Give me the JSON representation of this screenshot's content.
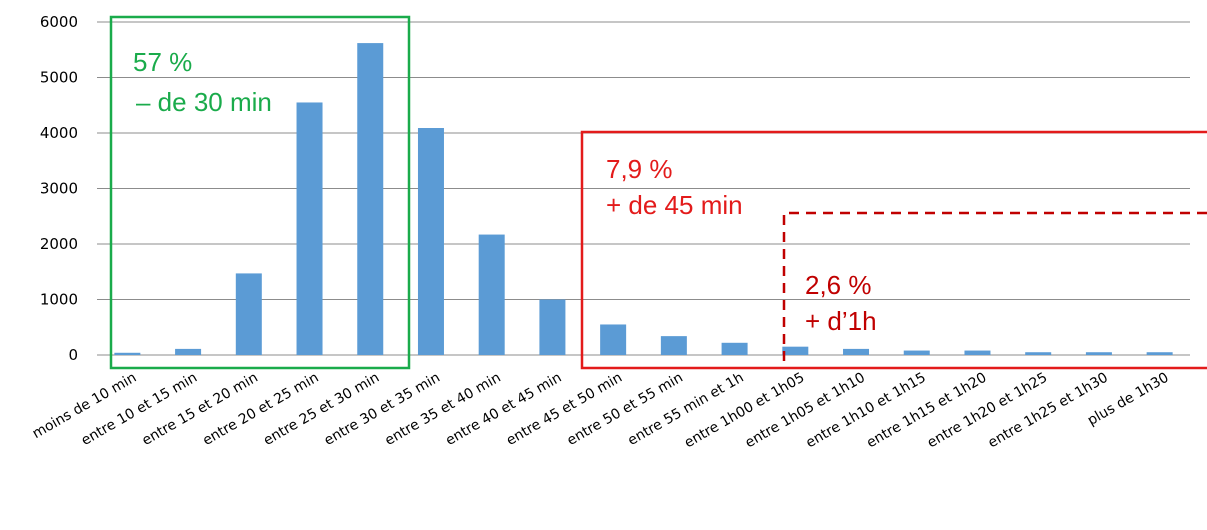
{
  "chart_data": {
    "type": "bar",
    "categories": [
      "moins de 10 min",
      "entre 10 et 15 min",
      "entre 15 et 20 min",
      "entre 20 et 25 min",
      "entre 25 et 30 min",
      "entre 30 et 35 min",
      "entre 35 et 40 min",
      "entre 40 et 45 min",
      "entre 45 et 50 min",
      "entre 50 et 55 min",
      "entre 55 min et 1h",
      "entre 1h00 et 1h05",
      "entre 1h05 et 1h10",
      "entre 1h10 et 1h15",
      "entre 1h15 et 1h20",
      "entre 1h20 et 1h25",
      "entre 1h25 et 1h30",
      "plus de 1h30"
    ],
    "values": [
      40,
      110,
      1470,
      4550,
      5620,
      4090,
      2170,
      1000,
      550,
      340,
      220,
      150,
      110,
      80,
      80,
      50,
      50,
      50
    ],
    "ylim": [
      0,
      6000
    ],
    "yticks": [
      "0",
      "1000",
      "2000",
      "3000",
      "4000",
      "5000",
      "6000"
    ],
    "grid": true,
    "colors": {
      "bar": "#5b9bd5",
      "grid": "#8c8c8c",
      "green": "#1aab4b",
      "red": "#e31b1b",
      "darkred": "#c00000"
    },
    "annotations": {
      "green_pct": "57 %",
      "green_text": "– de 30 min",
      "red_pct": "7,9 %",
      "red_text": "+ de 45 min",
      "darkred_pct": "2,6 %",
      "darkred_text": "+ d’1h"
    }
  }
}
